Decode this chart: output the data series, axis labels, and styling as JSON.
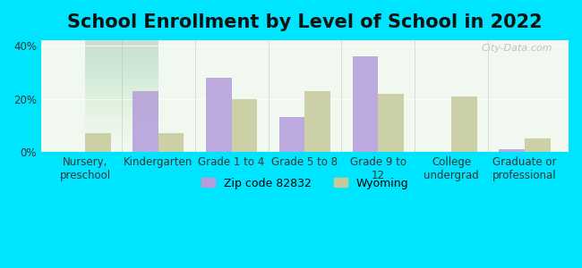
{
  "title": "School Enrollment by Level of School in 2022",
  "categories": [
    "Nursery,\npreschool",
    "Kindergarten",
    "Grade 1 to 4",
    "Grade 5 to 8",
    "Grade 9 to\n12",
    "College\nundergrad",
    "Graduate or\nprofessional"
  ],
  "zip_values": [
    0.0,
    23.0,
    28.0,
    13.0,
    36.0,
    0.0,
    1.0
  ],
  "wy_values": [
    7.0,
    7.0,
    20.0,
    23.0,
    22.0,
    21.0,
    5.0
  ],
  "zip_color": "#b39ddb",
  "wy_color": "#c5c99a",
  "background_outer": "#00e5ff",
  "background_inner_top": "#f0f8f0",
  "background_inner_bottom": "#e8f5e9",
  "ylabel_ticks": [
    "0%",
    "20%",
    "40%"
  ],
  "yticks": [
    0,
    20,
    40
  ],
  "ylim": [
    0,
    42
  ],
  "legend_zip_label": "Zip code 82832",
  "legend_wy_label": "Wyoming",
  "watermark": "City-Data.com",
  "title_fontsize": 15,
  "tick_fontsize": 8.5,
  "legend_fontsize": 9
}
